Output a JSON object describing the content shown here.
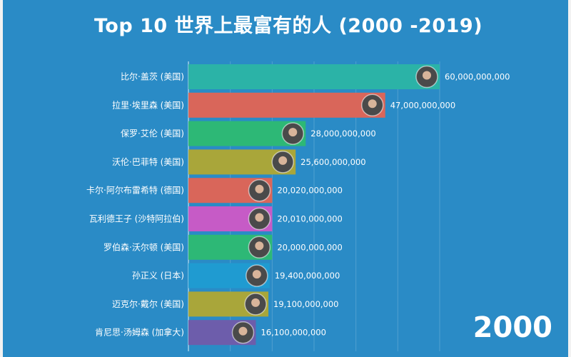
{
  "chart_data": {
    "type": "bar",
    "title": "Top 10 世界上最富有的人 (2000 -2019)",
    "period_label": "2000",
    "categories": [
      "比尔·盖茨 (美国)",
      "拉里·埃里森 (美国)",
      "保罗·艾伦 (美国)",
      "沃伦·巴菲特 (美国)",
      "卡尔·阿尔布雷希特 (德国)",
      "瓦利德王子 (沙特阿拉伯)",
      "罗伯森·沃尔顿 (美国)",
      "孙正义 (日本)",
      "迈克尔·戴尔 (美国)",
      "肯尼思·汤姆森 (加拿大)"
    ],
    "values": [
      60000000000,
      47000000000,
      28000000000,
      25600000000,
      20020000000,
      20010000000,
      20000000000,
      19400000000,
      19100000000,
      16100000000
    ],
    "value_labels": [
      "60,000,000,000",
      "47,000,000,000",
      "28,000,000,000",
      "25,600,000,000",
      "20,020,000,000",
      "20,010,000,000",
      "20,000,000,000",
      "19,400,000,000",
      "19,100,000,000",
      "16,100,000,000"
    ],
    "bar_colors": [
      "#2bb3a7",
      "#d9665a",
      "#2db876",
      "#a9a63a",
      "#d9665a",
      "#c65bc6",
      "#2db876",
      "#1f9bd1",
      "#a9a63a",
      "#6d5dab"
    ],
    "xlim": [
      0,
      60000000000
    ],
    "grid": true
  }
}
